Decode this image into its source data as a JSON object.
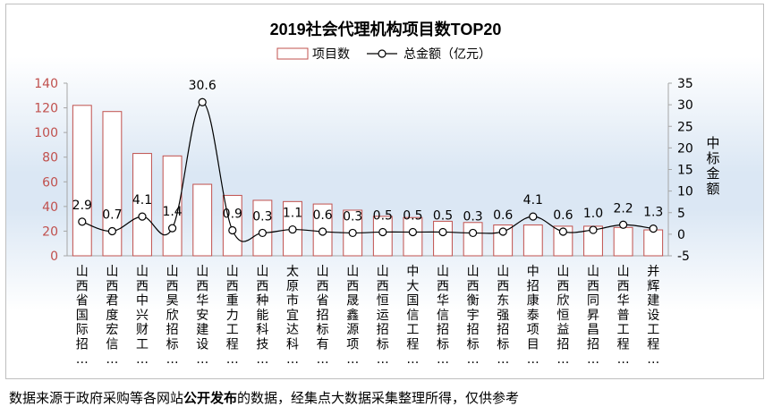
{
  "chart_data": {
    "type": "bar+line",
    "title": "2019社会代理机构项目数TOP20",
    "legend": [
      "项目数",
      "总金额（亿元）"
    ],
    "legend_position": "top",
    "y2label": "中标金额",
    "categories": [
      "山西省国际招…",
      "山西君度宏信…",
      "山西中兴财工…",
      "山西昊欣招标…",
      "山西华安建设…",
      "山西重力工程…",
      "山西种能科技…",
      "太原市宜达科…",
      "山西省招标有…",
      "山西晟鑫源项…",
      "山西恒运招标…",
      "中大国信工程…",
      "山西华信招标…",
      "山西衡宇招标…",
      "山西东强招标…",
      "中招康泰项目…",
      "山西欣恒益招…",
      "山西同昇昌招…",
      "山西华普工程…",
      "并辉建设工程…"
    ],
    "series": [
      {
        "name": "项目数",
        "type": "bar",
        "axis": "left",
        "values": [
          122,
          117,
          83,
          81,
          58,
          49,
          45,
          44,
          42,
          37,
          32,
          31,
          28,
          27,
          25,
          25,
          24,
          24,
          23,
          21
        ]
      },
      {
        "name": "总金额（亿元）",
        "type": "line",
        "axis": "right",
        "values": [
          2.9,
          0.7,
          4.1,
          1.4,
          30.6,
          0.9,
          0.3,
          1.1,
          0.6,
          0.3,
          0.5,
          0.5,
          0.5,
          0.3,
          0.6,
          4.1,
          0.6,
          1.0,
          2.2,
          1.3
        ],
        "labels": [
          "2.9",
          "0.7",
          "4.1",
          "1.4",
          "30.6",
          "0.9",
          "0.3",
          "1.1",
          "0.6",
          "0.3",
          "0.5",
          "0.5",
          "0.5",
          "0.3",
          "0.6",
          "4.1",
          "0.6",
          "1.0",
          "2.2",
          "1.3"
        ]
      }
    ],
    "ylim_left": [
      0,
      140
    ],
    "yticks_left": [
      "0",
      "20",
      "40",
      "60",
      "80",
      "100",
      "120",
      "140"
    ],
    "ylim_right": [
      -5,
      35
    ],
    "yticks_right": [
      "-5",
      "0",
      "5",
      "10",
      "15",
      "20",
      "25",
      "30",
      "35"
    ],
    "grid": false,
    "colors": {
      "bar_edge": "#c0504d",
      "bar_fill": "#ffffff",
      "line": "#000000",
      "left_axis_text": "#c0504d",
      "right_axis_text": "#000000"
    }
  },
  "footer": {
    "prefix": "数据来源于政府采购等各网站",
    "bold": "公开发布",
    "suffix": "的数据，经集点大数据采集整理所得，仅供参考"
  }
}
